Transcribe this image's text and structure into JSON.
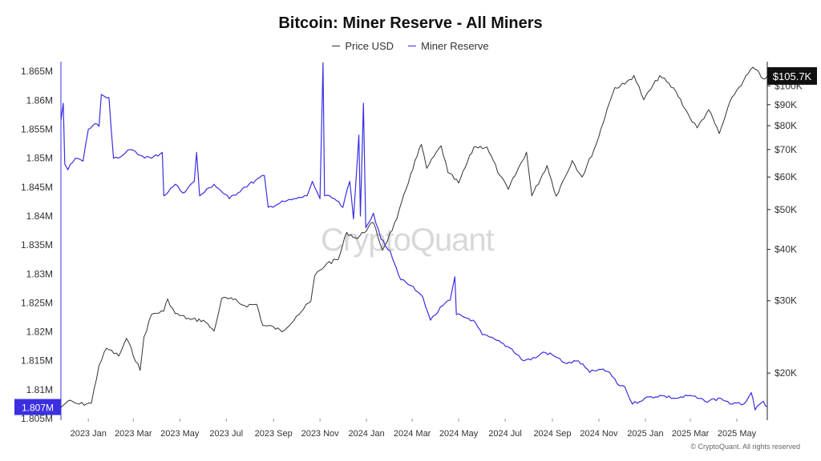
{
  "title": "Bitcoin: Miner Reserve - All Miners",
  "legend": [
    {
      "label": "Price USD",
      "color": "#333333"
    },
    {
      "label": "Miner Reserve",
      "color": "#3b2fe0"
    }
  ],
  "watermark": "CryptoQuant",
  "copyright": "© CryptoQuant. All rights reserved",
  "chart_data": {
    "type": "line",
    "title": "Bitcoin: Miner Reserve - All Miners",
    "x_ticks": [
      "2023 Jan",
      "2023 Mar",
      "2023 May",
      "2023 Jul",
      "2023 Sep",
      "2023 Nov",
      "2024 Jan",
      "2024 Mar",
      "2024 May",
      "2024 Jul",
      "2024 Sep",
      "2024 Nov",
      "2025 Jan",
      "2025 Mar",
      "2025 May"
    ],
    "x_range": [
      "2022-11-26",
      "2025-06-10"
    ],
    "left_axis": {
      "label": "",
      "ticks": [
        "1.865M",
        "1.86M",
        "1.855M",
        "1.85M",
        "1.845M",
        "1.84M",
        "1.835M",
        "1.83M",
        "1.825M",
        "1.82M",
        "1.815M",
        "1.81M",
        "1.805M"
      ],
      "range": [
        1805000,
        1866000
      ],
      "current_value_label": "1.807M",
      "color": "#3b2fe0"
    },
    "right_axis": {
      "scale": "log",
      "ticks": [
        "$100K",
        "$90K",
        "$80K",
        "$70K",
        "$60K",
        "$50K",
        "$40K",
        "$30K",
        "$20K"
      ],
      "tick_values": [
        100000,
        90000,
        80000,
        70000,
        60000,
        50000,
        40000,
        30000,
        20000
      ],
      "range": [
        15500,
        112000
      ],
      "current_value_label": "$105.7K"
    },
    "grid": false,
    "legend_position": "top-center",
    "series": [
      {
        "name": "Price USD",
        "axis": "right",
        "color": "#333333",
        "points": [
          [
            "2022-11-26",
            16500
          ],
          [
            "2022-12-05",
            17100
          ],
          [
            "2022-12-20",
            16800
          ],
          [
            "2023-01-05",
            16900
          ],
          [
            "2023-01-15",
            20900
          ],
          [
            "2023-01-25",
            23000
          ],
          [
            "2023-02-10",
            22000
          ],
          [
            "2023-02-20",
            24300
          ],
          [
            "2023-03-10",
            20300
          ],
          [
            "2023-03-15",
            24500
          ],
          [
            "2023-03-25",
            27800
          ],
          [
            "2023-04-10",
            28300
          ],
          [
            "2023-04-15",
            30300
          ],
          [
            "2023-04-25",
            27900
          ],
          [
            "2023-05-15",
            27000
          ],
          [
            "2023-06-01",
            26900
          ],
          [
            "2023-06-15",
            25300
          ],
          [
            "2023-06-25",
            30400
          ],
          [
            "2023-07-10",
            30200
          ],
          [
            "2023-07-25",
            29200
          ],
          [
            "2023-08-10",
            29400
          ],
          [
            "2023-08-18",
            26100
          ],
          [
            "2023-09-01",
            25900
          ],
          [
            "2023-09-12",
            25200
          ],
          [
            "2023-10-01",
            27500
          ],
          [
            "2023-10-20",
            29900
          ],
          [
            "2023-10-25",
            34500
          ],
          [
            "2023-11-10",
            37000
          ],
          [
            "2023-11-25",
            37800
          ],
          [
            "2023-12-06",
            44000
          ],
          [
            "2023-12-20",
            42500
          ],
          [
            "2024-01-10",
            46500
          ],
          [
            "2024-01-22",
            39800
          ],
          [
            "2024-02-10",
            47500
          ],
          [
            "2024-02-28",
            61000
          ],
          [
            "2024-03-13",
            72000
          ],
          [
            "2024-03-20",
            63000
          ],
          [
            "2024-04-08",
            71500
          ],
          [
            "2024-04-17",
            61500
          ],
          [
            "2024-05-01",
            58000
          ],
          [
            "2024-05-21",
            71000
          ],
          [
            "2024-06-07",
            71000
          ],
          [
            "2024-06-24",
            60500
          ],
          [
            "2024-07-05",
            56000
          ],
          [
            "2024-07-29",
            69000
          ],
          [
            "2024-08-05",
            54000
          ],
          [
            "2024-08-25",
            64000
          ],
          [
            "2024-09-06",
            53900
          ],
          [
            "2024-09-27",
            65800
          ],
          [
            "2024-10-10",
            60000
          ],
          [
            "2024-10-29",
            72500
          ],
          [
            "2024-11-12",
            88000
          ],
          [
            "2024-11-22",
            99000
          ],
          [
            "2024-12-05",
            101000
          ],
          [
            "2024-12-17",
            106000
          ],
          [
            "2024-12-30",
            92500
          ],
          [
            "2025-01-20",
            106000
          ],
          [
            "2025-02-10",
            97000
          ],
          [
            "2025-02-28",
            84000
          ],
          [
            "2025-03-10",
            79000
          ],
          [
            "2025-03-25",
            87500
          ],
          [
            "2025-04-08",
            76500
          ],
          [
            "2025-04-25",
            94000
          ],
          [
            "2025-05-10",
            103000
          ],
          [
            "2025-05-22",
            111000
          ],
          [
            "2025-06-05",
            104000
          ],
          [
            "2025-06-10",
            105700
          ]
        ]
      },
      {
        "name": "Miner Reserve",
        "axis": "left",
        "color": "#3b2fe0",
        "points": [
          [
            "2022-11-26",
            1856500
          ],
          [
            "2022-11-29",
            1859500
          ],
          [
            "2022-12-01",
            1849000
          ],
          [
            "2022-12-05",
            1848000
          ],
          [
            "2022-12-15",
            1850000
          ],
          [
            "2022-12-25",
            1849500
          ],
          [
            "2023-01-01",
            1855000
          ],
          [
            "2023-01-10",
            1856000
          ],
          [
            "2023-01-15",
            1855500
          ],
          [
            "2023-01-18",
            1861000
          ],
          [
            "2023-01-28",
            1860500
          ],
          [
            "2023-02-03",
            1850000
          ],
          [
            "2023-02-15",
            1850500
          ],
          [
            "2023-02-25",
            1851500
          ],
          [
            "2023-03-10",
            1850500
          ],
          [
            "2023-03-25",
            1850000
          ],
          [
            "2023-04-08",
            1851000
          ],
          [
            "2023-04-10",
            1843500
          ],
          [
            "2023-04-25",
            1845500
          ],
          [
            "2023-05-05",
            1844000
          ],
          [
            "2023-05-20",
            1846000
          ],
          [
            "2023-05-23",
            1851000
          ],
          [
            "2023-05-27",
            1843500
          ],
          [
            "2023-06-15",
            1845500
          ],
          [
            "2023-07-05",
            1843000
          ],
          [
            "2023-07-25",
            1845000
          ],
          [
            "2023-08-20",
            1847000
          ],
          [
            "2023-08-25",
            1841500
          ],
          [
            "2023-09-15",
            1842500
          ],
          [
            "2023-10-01",
            1843000
          ],
          [
            "2023-10-15",
            1843500
          ],
          [
            "2023-10-22",
            1846000
          ],
          [
            "2023-11-01",
            1843000
          ],
          [
            "2023-11-05",
            1866500
          ],
          [
            "2023-11-07",
            1843500
          ],
          [
            "2023-11-20",
            1843000
          ],
          [
            "2023-12-01",
            1841500
          ],
          [
            "2023-12-10",
            1846000
          ],
          [
            "2023-12-15",
            1839500
          ],
          [
            "2023-12-22",
            1854000
          ],
          [
            "2023-12-24",
            1840000
          ],
          [
            "2023-12-28",
            1859500
          ],
          [
            "2023-12-31",
            1838000
          ],
          [
            "2024-01-10",
            1840500
          ],
          [
            "2024-01-20",
            1836000
          ],
          [
            "2024-02-01",
            1834000
          ],
          [
            "2024-02-15",
            1829000
          ],
          [
            "2024-02-28",
            1828000
          ],
          [
            "2024-03-15",
            1826000
          ],
          [
            "2024-03-25",
            1822000
          ],
          [
            "2024-04-10",
            1824500
          ],
          [
            "2024-04-20",
            1825500
          ],
          [
            "2024-04-26",
            1829500
          ],
          [
            "2024-04-28",
            1823000
          ],
          [
            "2024-05-20",
            1822000
          ],
          [
            "2024-06-01",
            1819500
          ],
          [
            "2024-06-20",
            1818500
          ],
          [
            "2024-07-10",
            1817000
          ],
          [
            "2024-07-25",
            1815000
          ],
          [
            "2024-08-10",
            1815500
          ],
          [
            "2024-08-20",
            1816500
          ],
          [
            "2024-09-01",
            1816000
          ],
          [
            "2024-09-20",
            1814500
          ],
          [
            "2024-10-05",
            1815000
          ],
          [
            "2024-10-20",
            1813000
          ],
          [
            "2024-11-01",
            1813500
          ],
          [
            "2024-11-15",
            1813000
          ],
          [
            "2024-11-25",
            1811000
          ],
          [
            "2024-12-05",
            1810500
          ],
          [
            "2024-12-15",
            1807500
          ],
          [
            "2024-12-31",
            1808500
          ],
          [
            "2025-01-20",
            1809000
          ],
          [
            "2025-02-10",
            1808500
          ],
          [
            "2025-03-01",
            1809000
          ],
          [
            "2025-03-20",
            1808000
          ],
          [
            "2025-04-10",
            1808500
          ],
          [
            "2025-04-25",
            1807500
          ],
          [
            "2025-05-10",
            1807500
          ],
          [
            "2025-05-20",
            1809500
          ],
          [
            "2025-05-25",
            1806500
          ],
          [
            "2025-06-05",
            1808000
          ],
          [
            "2025-06-10",
            1807000
          ]
        ]
      }
    ]
  }
}
